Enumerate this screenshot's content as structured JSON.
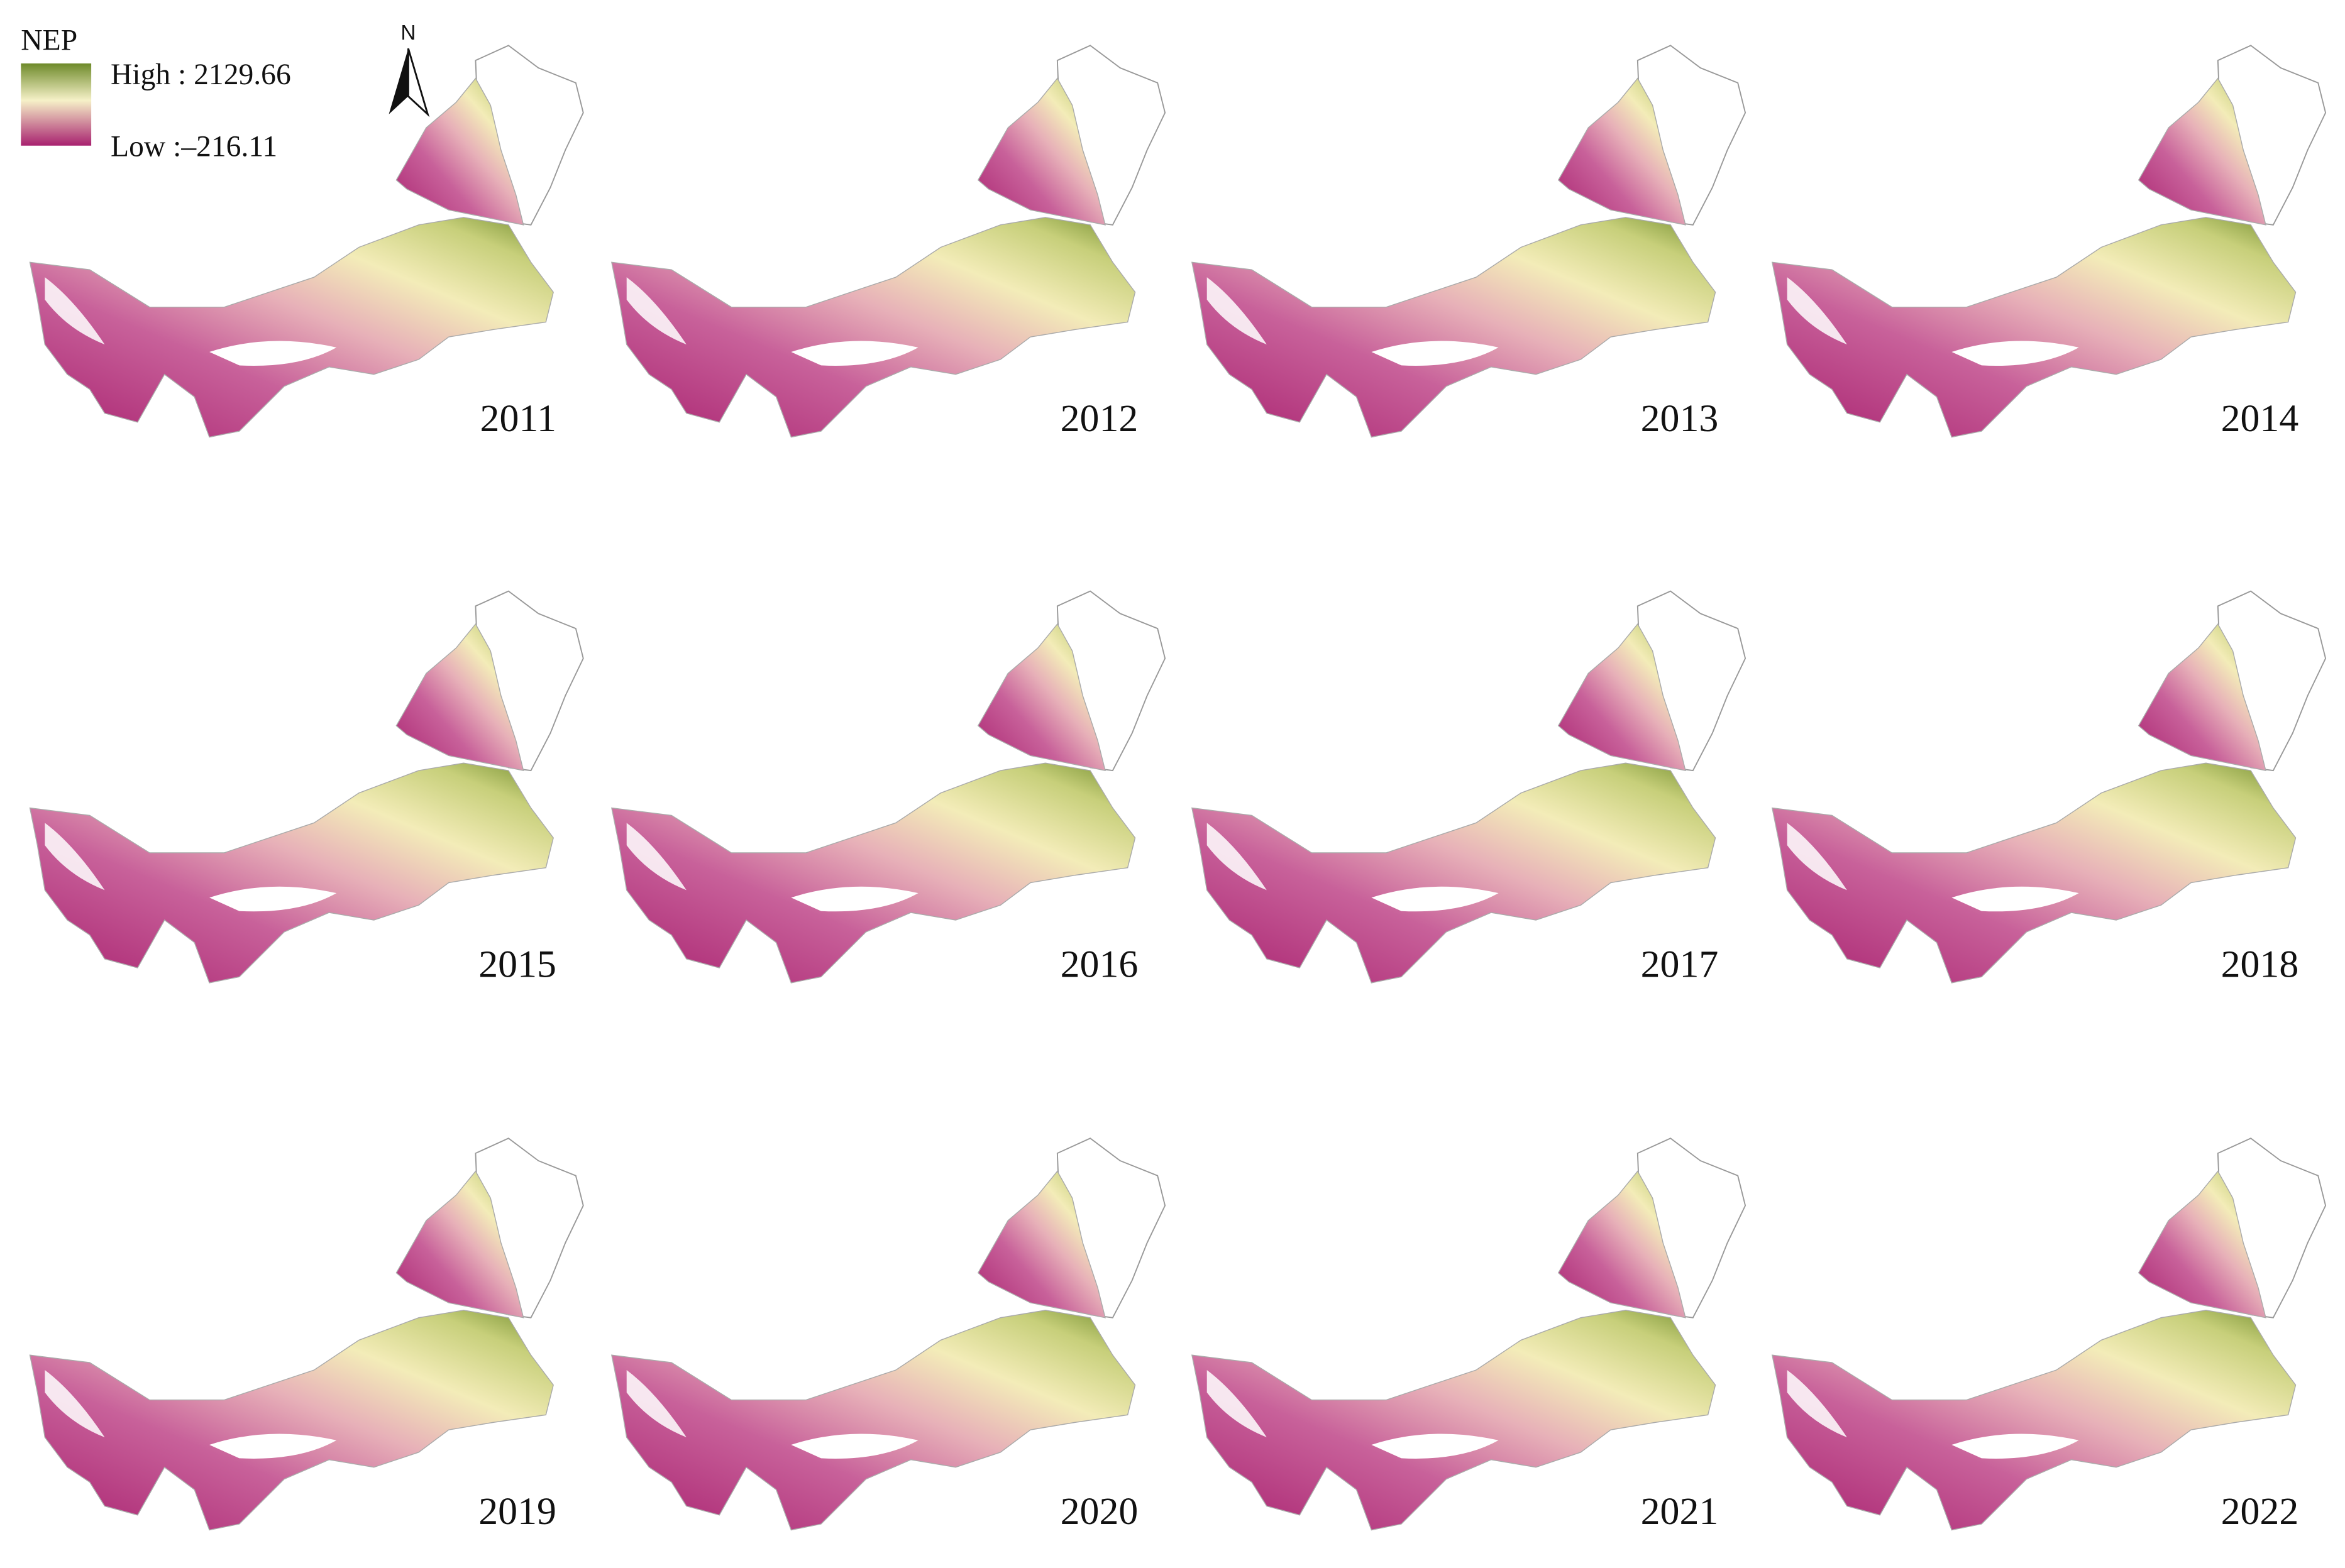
{
  "legend": {
    "title": "NEP",
    "high": "High : 2129.66",
    "low": "Low :–216.11"
  },
  "north_arrow": "N",
  "maps": [
    {
      "year": "2011"
    },
    {
      "year": "2012"
    },
    {
      "year": "2013"
    },
    {
      "year": "2014"
    },
    {
      "year": "2015"
    },
    {
      "year": "2016"
    },
    {
      "year": "2017"
    },
    {
      "year": "2018"
    },
    {
      "year": "2019"
    },
    {
      "year": "2020"
    },
    {
      "year": "2021"
    },
    {
      "year": "2022"
    }
  ]
}
